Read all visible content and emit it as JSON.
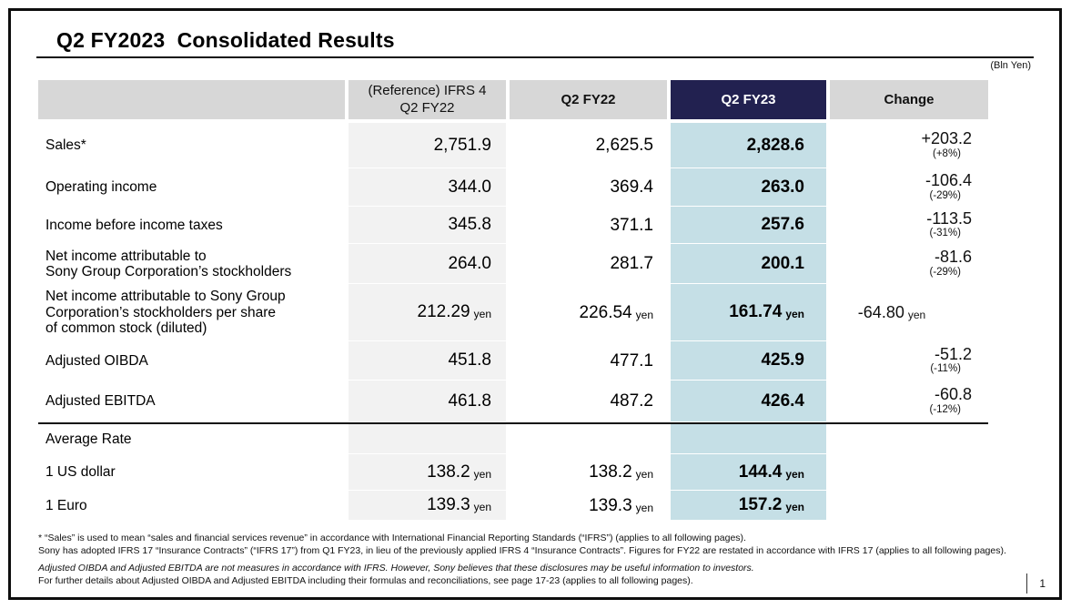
{
  "slide": {
    "title": "Q2 FY2023  Consolidated Results",
    "unit_note": "(Bln Yen)",
    "page_number": "1"
  },
  "colors": {
    "header_navy": "#222150",
    "highlight_column_blue": "#c5dfe6",
    "header_gray": "#d7d7d7",
    "reference_column_gray": "#f2f2f2"
  },
  "table": {
    "headers": {
      "reference": "(Reference) IFRS 4\nQ2 FY22",
      "q2fy22": "Q2 FY22",
      "q2fy23": "Q2 FY23",
      "change": "Change"
    },
    "rows": [
      {
        "label": "Sales*",
        "ref": "2,751.9",
        "fy22": "2,625.5",
        "fy23": "2,828.6",
        "change": "+203.2",
        "change_pct": "(+8%)"
      },
      {
        "label": "Operating income",
        "ref": "344.0",
        "fy22": "369.4",
        "fy23": "263.0",
        "change": "-106.4",
        "change_pct": "(-29%)"
      },
      {
        "label": "Income before income taxes",
        "ref": "345.8",
        "fy22": "371.1",
        "fy23": "257.6",
        "change": "-113.5",
        "change_pct": "(-31%)"
      },
      {
        "label": "Net income attributable to\nSony Group Corporation’s stockholders",
        "ref": "264.0",
        "fy22": "281.7",
        "fy23": "200.1",
        "change": "-81.6",
        "change_pct": "(-29%)"
      },
      {
        "label": "Net income attributable to Sony Group\nCorporation’s stockholders per share\nof common stock (diluted)",
        "ref": "212.29",
        "ref_unit": "yen",
        "fy22": "226.54",
        "fy22_unit": "yen",
        "fy23": "161.74",
        "fy23_unit": "yen",
        "change": "-64.80",
        "change_unit": "yen"
      },
      {
        "label": "Adjusted OIBDA",
        "ref": "451.8",
        "fy22": "477.1",
        "fy23": "425.9",
        "change": "-51.2",
        "change_pct": "(-11%)"
      },
      {
        "label": "Adjusted EBITDA",
        "ref": "461.8",
        "fy22": "487.2",
        "fy23": "426.4",
        "change": "-60.8",
        "change_pct": "(-12%)"
      },
      {
        "label": "Average Rate"
      },
      {
        "label": "1 US dollar",
        "ref": "138.2",
        "ref_unit": "yen",
        "fy22": "138.2",
        "fy22_unit": "yen",
        "fy23": "144.4",
        "fy23_unit": "yen"
      },
      {
        "label": "1 Euro",
        "ref": "139.3",
        "ref_unit": "yen",
        "fy22": "139.3",
        "fy22_unit": "yen",
        "fy23": "157.2",
        "fy23_unit": "yen"
      }
    ]
  },
  "footnotes": {
    "line1": "* “Sales” is used to mean “sales and financial services revenue” in accordance with International Financial Reporting Standards (“IFRS”) (applies to all following pages).",
    "line2": "Sony has adopted IFRS 17 “Insurance Contracts” (“IFRS 17”) from Q1 FY23, in lieu of the previously applied IFRS 4 “Insurance Contracts”. Figures for FY22 are restated in accordance with IFRS 17 (applies to all following pages).",
    "line3": "Adjusted OIBDA and Adjusted EBITDA are not measures in accordance with IFRS. However, Sony believes that these disclosures may be useful information to investors.",
    "line4": "For further details about Adjusted OIBDA and Adjusted EBITDA including their formulas and reconciliations, see page 17-23 (applies to all following pages)."
  }
}
